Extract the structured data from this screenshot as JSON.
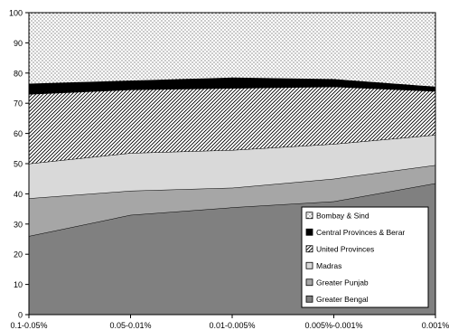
{
  "chart_data": {
    "type": "area",
    "stacked": true,
    "x_categories": [
      "0.1-0.05%",
      "0.05-0.01%",
      "0.01-0.005%",
      "0.005%-0.001%",
      "0.001%"
    ],
    "ylim": [
      0,
      100
    ],
    "y_ticks": [
      "0",
      "10",
      "20",
      "30",
      "40",
      "50",
      "60",
      "70",
      "80",
      "90",
      "100"
    ],
    "grid": false,
    "legend_placement": "bottom-right",
    "series": [
      {
        "name": "Greater Bengal",
        "values": [
          26,
          33,
          35.5,
          37.5,
          43.5
        ],
        "fill": "#808080",
        "pattern": "solid"
      },
      {
        "name": "Greater Punjab",
        "values": [
          12.5,
          8,
          6.5,
          7.5,
          6
        ],
        "fill": "#a6a6a6",
        "pattern": "solid"
      },
      {
        "name": "Madras",
        "values": [
          11.5,
          12.5,
          12.5,
          11.5,
          10
        ],
        "fill": "#d9d9d9",
        "pattern": "solid"
      },
      {
        "name": "United Provinces",
        "values": [
          23,
          21,
          20.5,
          19,
          14.5
        ],
        "fill": "#ffffff",
        "pattern": "diagonal-hatch"
      },
      {
        "name": "Central Provinces & Berar",
        "values": [
          3.5,
          3,
          3.5,
          2.5,
          1.5
        ],
        "fill": "#000000",
        "pattern": "solid"
      },
      {
        "name": "Bombay & Sind",
        "values": [
          23.5,
          22.5,
          21.5,
          22,
          24.5
        ],
        "fill": "#ffffff",
        "pattern": "dots"
      }
    ]
  }
}
